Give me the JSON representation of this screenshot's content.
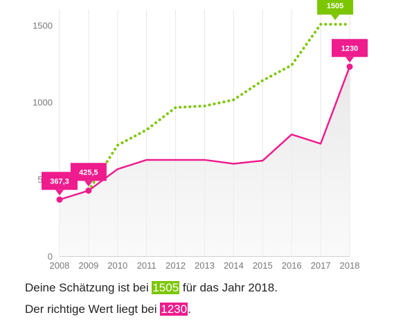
{
  "chart_data": {
    "type": "line",
    "x": [
      2008,
      2009,
      2010,
      2011,
      2012,
      2013,
      2014,
      2015,
      2016,
      2017,
      2018
    ],
    "ylim": [
      0,
      1600
    ],
    "yticks": [
      0,
      500,
      1000,
      1500
    ],
    "ytick_labels": [
      "0",
      "500",
      "1000",
      "1500"
    ],
    "xtick_labels": [
      "2008",
      "2009",
      "2010",
      "2011",
      "2012",
      "2013",
      "2014",
      "2015",
      "2016",
      "2017",
      "2018"
    ],
    "grid": "vertical",
    "series": [
      {
        "role": "actual",
        "style": "solid",
        "color": "#ee1c8d",
        "values": [
          367.3,
          425.5,
          565,
          625,
          625,
          625,
          600,
          620,
          790,
          730,
          1230
        ]
      },
      {
        "role": "estimate",
        "style": "dotted",
        "color": "#7cc600",
        "values": [
          null,
          425.5,
          720,
          820,
          965,
          975,
          1015,
          1140,
          1240,
          1505,
          1505
        ]
      }
    ],
    "annotations": [
      {
        "label": "367,3",
        "x": 2008,
        "y": 367.3,
        "color": "#ee1c8d"
      },
      {
        "label": "425,5",
        "x": 2009,
        "y": 425.5,
        "color": "#ee1c8d"
      },
      {
        "label": "1505",
        "x": 2017.5,
        "y": 1505,
        "color": "#7cc600"
      },
      {
        "label": "1230",
        "x": 2018,
        "y": 1230,
        "color": "#ee1c8d"
      }
    ]
  },
  "summary": {
    "line1_prefix": "Deine Schätzung ist bei ",
    "line1_value": "1505",
    "line1_suffix": " für das Jahr 2018.",
    "line2_prefix": "Der richtige Wert liegt bei ",
    "line2_value": "1230",
    "line2_suffix": "."
  }
}
